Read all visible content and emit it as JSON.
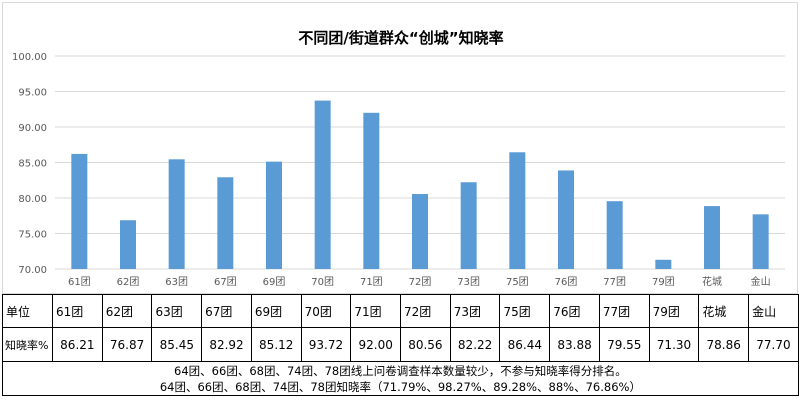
{
  "chart_data": {
    "type": "bar",
    "title": "不同团/街道群众“创城”知晓率",
    "categories": [
      "61团",
      "62团",
      "63团",
      "67团",
      "69团",
      "70团",
      "71团",
      "72团",
      "73团",
      "75团",
      "76团",
      "77团",
      "79团",
      "花城",
      "金山"
    ],
    "values": [
      86.21,
      76.87,
      85.45,
      82.92,
      85.12,
      93.72,
      92.0,
      80.56,
      82.22,
      86.44,
      83.88,
      79.55,
      71.3,
      78.86,
      77.7
    ],
    "ylim": [
      70,
      100
    ],
    "yticks": [
      "70.00",
      "75.00",
      "80.00",
      "85.00",
      "90.00",
      "95.00",
      "100.00"
    ],
    "grid": true,
    "bar_color": "#5b9bd5",
    "grid_color": "#d9d9d9"
  },
  "table": {
    "unit_header": "单位",
    "rate_header": "知晓率%",
    "display_values": [
      "86.21",
      "76.87",
      "85.45",
      "82.92",
      "85.12",
      "93.72",
      "92.00",
      "80.56",
      "82.22",
      "86.44",
      "83.88",
      "79.55",
      "71.30",
      "78.86",
      "77.70"
    ],
    "note_line1": "64团、66团、68团、74团、78团线上问卷调查样本数量较少，不参与知晓率得分排名。",
    "note_line2": "64团、66团、68团、74团、78团知晓率（71.79%、98.27%、89.28%、88%、76.86%）"
  }
}
